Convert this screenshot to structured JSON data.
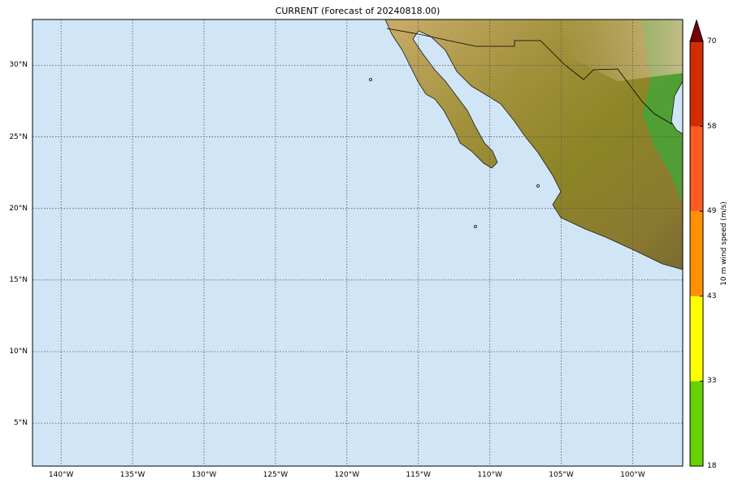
{
  "title": "CURRENT (Forecast of 20240818.00)",
  "map": {
    "projection": "cylindrical",
    "lon_range": [
      -142,
      -96.5
    ],
    "lat_range": [
      2,
      33.2
    ],
    "ocean_color": "#d0e6f6",
    "land_style": "shaded terrain",
    "gridlines": "dotted",
    "lon_ticks": [
      "140°W",
      "135°W",
      "130°W",
      "125°W",
      "120°W",
      "115°W",
      "110°W",
      "105°W",
      "100°W"
    ],
    "lon_values": [
      -140,
      -135,
      -130,
      -125,
      -120,
      -115,
      -110,
      -105,
      -100
    ],
    "lat_ticks": [
      "30°N",
      "25°N",
      "20°N",
      "15°N",
      "10°N",
      "5°N"
    ],
    "lat_values": [
      30,
      25,
      20,
      15,
      10,
      5
    ]
  },
  "colorbar": {
    "label": "10 m wind speed (m/s)",
    "ticks": [
      "18",
      "33",
      "43",
      "49",
      "58",
      "70"
    ],
    "bins": [
      {
        "from": 18,
        "to": 33,
        "color": "#66d200"
      },
      {
        "from": 33,
        "to": 43,
        "color": "#ffff00"
      },
      {
        "from": 43,
        "to": 49,
        "color": "#ff9000"
      },
      {
        "from": 49,
        "to": 58,
        "color": "#ff5a22"
      },
      {
        "from": 58,
        "to": 70,
        "color": "#d22c00"
      }
    ],
    "extend_color": "#7a0000"
  }
}
